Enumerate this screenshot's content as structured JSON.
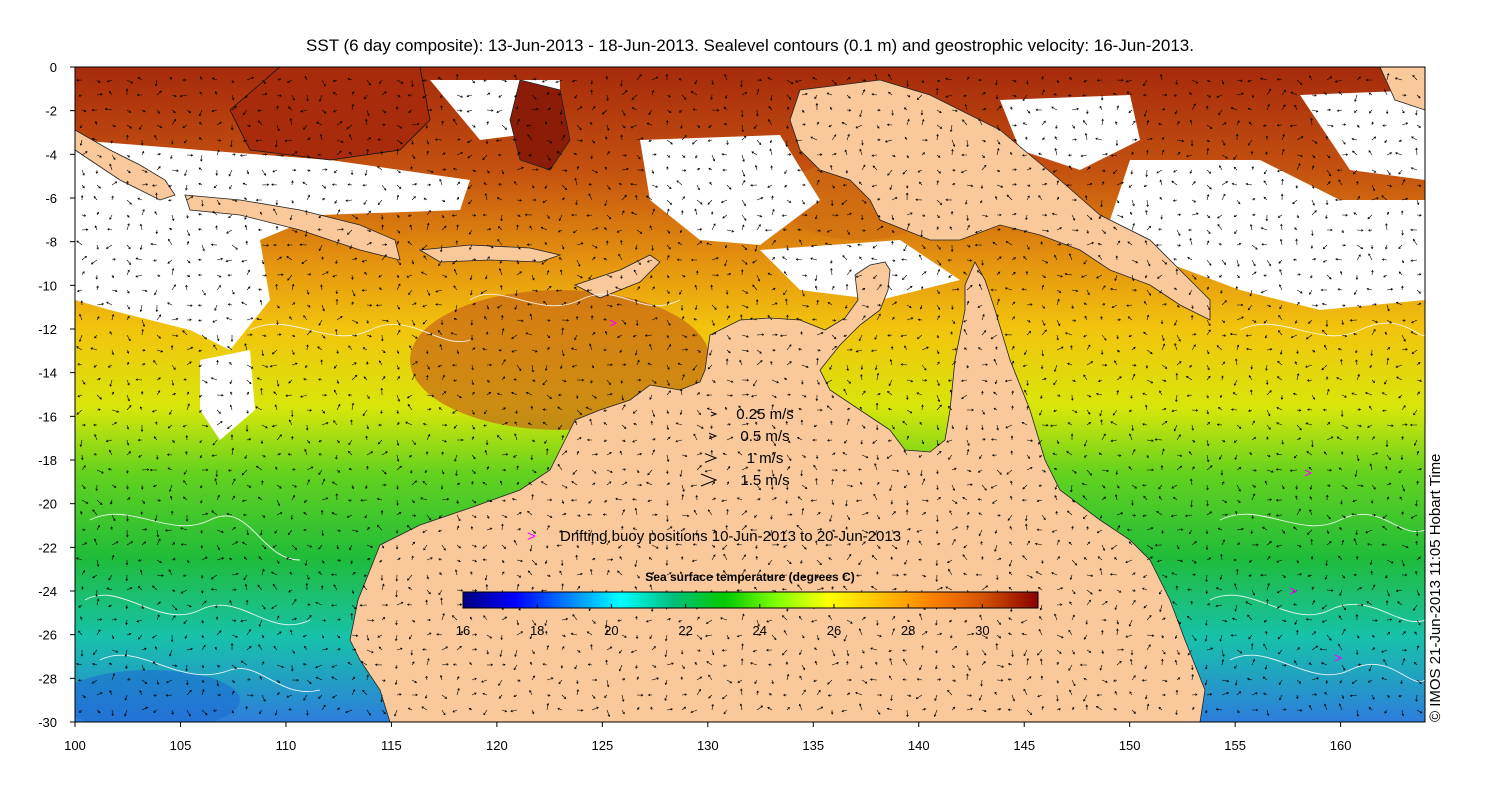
{
  "title": "SST (6 day composite): 13-Jun-2013 - 18-Jun-2013. Sealevel contours (0.1 m) and geostrophic velocity: 16-Jun-2013.",
  "x_axis": {
    "ticks": [
      "100",
      "105",
      "110",
      "115",
      "120",
      "125",
      "130",
      "135",
      "140",
      "145",
      "150",
      "155",
      "160"
    ],
    "range": [
      100,
      164
    ]
  },
  "y_axis": {
    "ticks": [
      "0",
      "-2",
      "-4",
      "-6",
      "-8",
      "-10",
      "-12",
      "-14",
      "-16",
      "-18",
      "-20",
      "-22",
      "-24",
      "-26",
      "-28",
      "-30"
    ],
    "range": [
      -30,
      0
    ]
  },
  "velocity_legend": [
    {
      "label": "0.25 m/s",
      "speed": 0.25
    },
    {
      "label": "0.5 m/s",
      "speed": 0.5
    },
    {
      "label": "1 m/s",
      "speed": 1
    },
    {
      "label": "1.5 m/s",
      "speed": 1.5
    }
  ],
  "buoy_legend": {
    "symbol": ">",
    "label": "Drifting buoy positions 10-Jun-2013 to 20-Jun-2013",
    "color": "#ff00ff"
  },
  "colorbar": {
    "title": "Sea surface temperature (degrees C)",
    "ticks": [
      "16",
      "18",
      "20",
      "22",
      "24",
      "26",
      "28",
      "30"
    ],
    "min": 16,
    "max": 31.5,
    "colors": [
      "#00007f",
      "#0000ff",
      "#007fff",
      "#00ffff",
      "#00bf7f",
      "#00c800",
      "#7fff00",
      "#ffff00",
      "#ffbf00",
      "#ff8000",
      "#d05000",
      "#8b0000"
    ]
  },
  "credit": "© IMOS 21-Jun-2013 11:05 Hobart Time",
  "colors": {
    "land": "#f9c89b",
    "cloud": "#ffffff",
    "contour": "#ffffff",
    "arrow": "#000000"
  }
}
